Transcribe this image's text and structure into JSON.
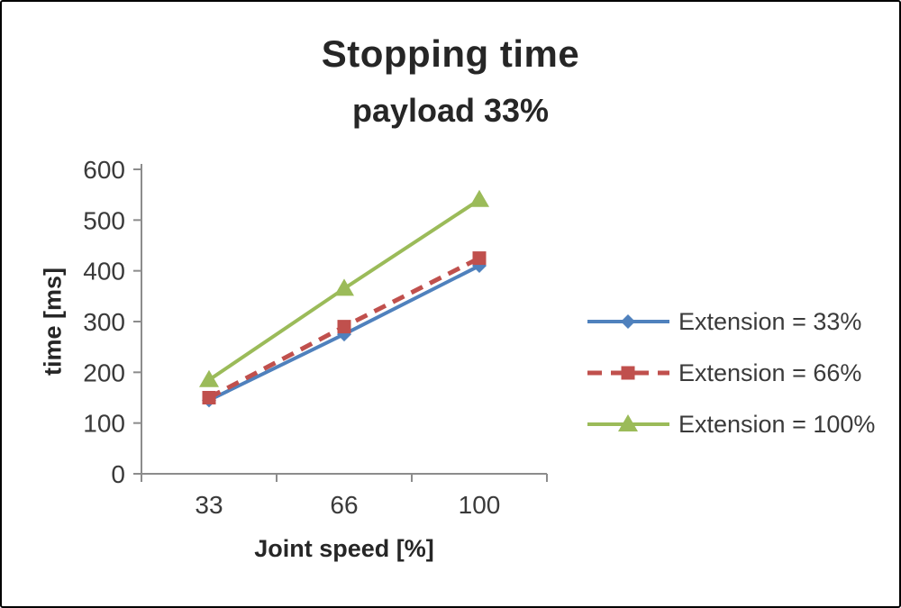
{
  "chart": {
    "title": "Stopping time",
    "subtitle": "payload 33%",
    "y_axis_title": "time [ms]",
    "x_axis_title": "Joint speed [%]"
  },
  "chart_data": {
    "type": "line",
    "title": "Stopping time",
    "subtitle": "payload 33%",
    "xlabel": "Joint speed [%]",
    "ylabel": "time [ms]",
    "categories": [
      "33",
      "66",
      "100"
    ],
    "y_ticks": [
      0,
      100,
      200,
      300,
      400,
      500,
      600
    ],
    "ylim": [
      0,
      600
    ],
    "grid": false,
    "legend_position": "right",
    "axis_color": "#8c8c8c",
    "series": [
      {
        "name": "Extension = 33%",
        "values": [
          145,
          275,
          410
        ],
        "color": "#4F81BD",
        "marker": "diamond",
        "dash": "solid"
      },
      {
        "name": "Extension = 66%",
        "values": [
          150,
          290,
          425
        ],
        "color": "#C0504D",
        "marker": "square",
        "dash": "dashed"
      },
      {
        "name": "Extension = 100%",
        "values": [
          185,
          365,
          540
        ],
        "color": "#9BBB59",
        "marker": "triangle",
        "dash": "solid"
      }
    ]
  }
}
